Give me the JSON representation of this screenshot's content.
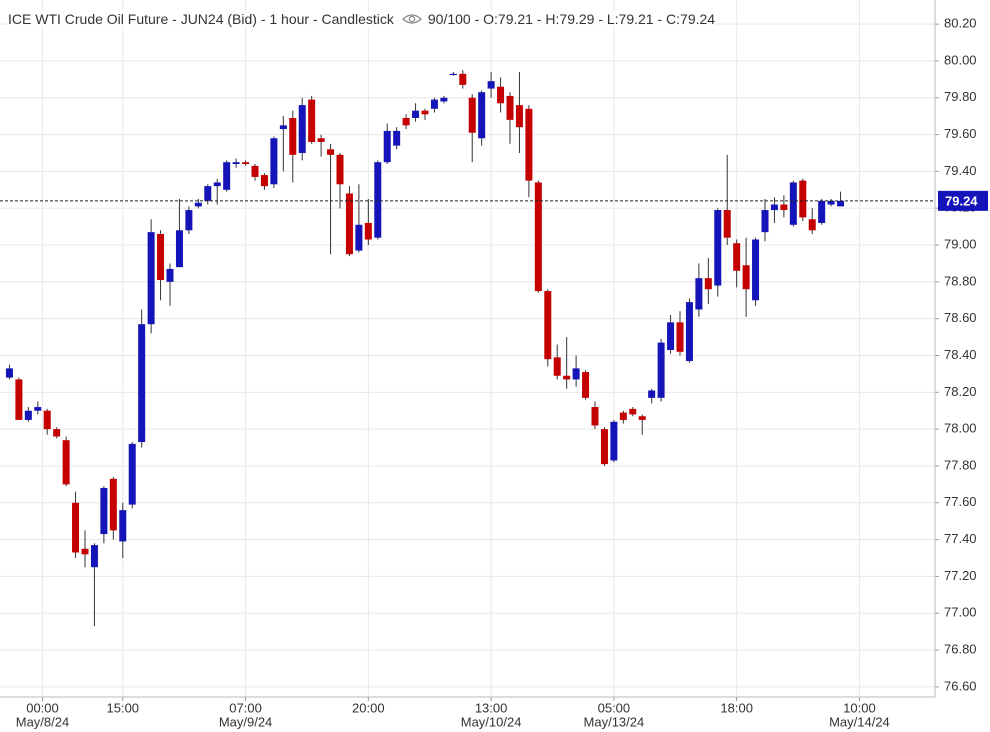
{
  "chart_data": {
    "type": "candlestick",
    "title": "ICE WTI Crude Oil Future - JUN24 (Bid) - 1 hour - Candlestick",
    "info": "90/100 - O:79.21 - H:79.29 - L:79.21 - C:79.24",
    "up_color": "#1414b8",
    "down_color": "#c40000",
    "open": [
      78.28,
      78.27,
      78.05,
      78.1,
      78.1,
      78.0,
      77.94,
      77.6,
      77.35,
      77.25,
      77.43,
      77.73,
      77.39,
      77.59,
      77.93,
      78.57,
      79.06,
      78.8,
      78.88,
      79.08,
      79.21,
      79.24,
      79.32,
      79.3,
      79.44,
      79.45,
      79.43,
      79.38,
      79.33,
      79.63,
      79.69,
      79.5,
      79.79,
      79.58,
      79.52,
      79.49,
      79.28,
      78.97,
      79.12,
      79.04,
      79.45,
      79.54,
      79.69,
      79.69,
      79.73,
      79.74,
      79.78,
      79.93,
      79.93,
      79.8,
      79.58,
      79.85,
      79.86,
      79.81,
      79.76,
      79.74,
      79.34,
      78.75,
      78.39,
      78.29,
      78.27,
      78.31,
      78.12,
      78.0,
      77.83,
      78.09,
      78.11,
      78.07,
      78.17,
      78.17,
      78.43,
      78.58,
      78.37,
      78.65,
      78.82,
      78.78,
      79.19,
      79.01,
      78.89,
      78.7,
      79.07,
      79.19,
      79.22,
      79.11,
      79.35,
      79.14,
      79.12,
      79.22,
      79.21
    ],
    "high": [
      78.35,
      78.28,
      78.12,
      78.15,
      78.11,
      78.01,
      77.96,
      77.66,
      77.45,
      77.38,
      77.69,
      77.74,
      77.6,
      77.93,
      78.65,
      79.14,
      79.08,
      78.9,
      79.25,
      79.21,
      79.25,
      79.33,
      79.36,
      79.46,
      79.47,
      79.46,
      79.44,
      79.39,
      79.59,
      79.7,
      79.73,
      79.8,
      79.81,
      79.6,
      79.55,
      79.5,
      79.32,
      79.33,
      79.25,
      79.46,
      79.66,
      79.64,
      79.71,
      79.77,
      79.74,
      79.8,
      79.81,
      79.94,
      79.95,
      79.82,
      79.84,
      79.94,
      79.91,
      79.83,
      79.94,
      79.76,
      79.35,
      78.76,
      78.46,
      78.5,
      78.4,
      78.32,
      78.15,
      78.01,
      78.05,
      78.1,
      78.12,
      78.08,
      78.22,
      78.49,
      78.62,
      78.64,
      78.71,
      78.9,
      78.93,
      79.2,
      79.49,
      79.03,
      79.04,
      79.04,
      79.25,
      79.26,
      79.27,
      79.35,
      79.36,
      79.2,
      79.25,
      79.25,
      79.29
    ],
    "low": [
      78.27,
      78.05,
      78.04,
      78.08,
      77.97,
      77.95,
      77.69,
      77.3,
      77.25,
      76.93,
      77.38,
      77.4,
      77.3,
      77.57,
      77.9,
      78.52,
      78.7,
      78.67,
      78.88,
      79.06,
      79.2,
      79.22,
      79.22,
      79.29,
      79.42,
      79.43,
      79.35,
      79.3,
      79.31,
      79.4,
      79.34,
      79.46,
      79.55,
      79.48,
      78.95,
      79.2,
      78.94,
      78.96,
      79.0,
      79.03,
      79.44,
      79.52,
      79.63,
      79.67,
      79.68,
      79.72,
      79.77,
      79.92,
      79.85,
      79.45,
      79.54,
      79.8,
      79.72,
      79.55,
      79.5,
      79.26,
      78.74,
      78.34,
      78.27,
      78.22,
      78.23,
      78.16,
      78.0,
      77.8,
      77.82,
      78.03,
      78.07,
      77.97,
      78.14,
      78.15,
      78.41,
      78.4,
      78.36,
      78.61,
      78.68,
      78.72,
      79.0,
      78.77,
      78.61,
      78.67,
      79.02,
      79.12,
      79.15,
      79.1,
      79.13,
      79.06,
      79.11,
      79.21,
      79.21
    ],
    "close": [
      78.33,
      78.05,
      78.1,
      78.12,
      78.0,
      77.96,
      77.7,
      77.33,
      77.32,
      77.37,
      77.68,
      77.45,
      77.56,
      77.92,
      78.57,
      79.07,
      78.81,
      78.87,
      79.08,
      79.19,
      79.23,
      79.32,
      79.34,
      79.45,
      79.45,
      79.44,
      79.37,
      79.32,
      79.58,
      79.65,
      79.49,
      79.76,
      79.56,
      79.56,
      79.49,
      79.33,
      78.95,
      79.11,
      79.03,
      79.45,
      79.62,
      79.62,
      79.65,
      79.73,
      79.71,
      79.79,
      79.8,
      79.93,
      79.87,
      79.61,
      79.83,
      79.89,
      79.77,
      79.68,
      79.64,
      79.35,
      78.75,
      78.38,
      78.29,
      78.27,
      78.33,
      78.17,
      78.02,
      77.81,
      78.04,
      78.05,
      78.08,
      78.05,
      78.21,
      78.47,
      78.58,
      78.42,
      78.69,
      78.82,
      78.76,
      79.19,
      79.04,
      78.86,
      78.76,
      79.03,
      79.19,
      79.22,
      79.19,
      79.34,
      79.15,
      79.08,
      79.24,
      79.24,
      79.24
    ],
    "last_price": 79.24,
    "xlim": [
      -1,
      98
    ],
    "xticks": [
      {
        "value": 3.5,
        "label": "00:00",
        "date": "May/8/24"
      },
      {
        "value": 12,
        "label": "15:00"
      },
      {
        "value": 25,
        "label": "07:00",
        "date": "May/9/24"
      },
      {
        "value": 38,
        "label": "20:00"
      },
      {
        "value": 51,
        "label": "13:00",
        "date": "May/10/24"
      },
      {
        "value": 64,
        "label": "05:00",
        "date": "May/13/24"
      },
      {
        "value": 77,
        "label": "18:00"
      },
      {
        "value": 90,
        "label": "10:00",
        "date": "May/14/24"
      }
    ],
    "ylim": [
      76.545,
      80.331
    ],
    "yticks": [
      {
        "value": 76.6,
        "label": "76.60"
      },
      {
        "value": 76.8,
        "label": "76.80"
      },
      {
        "value": 77.0,
        "label": "77.00"
      },
      {
        "value": 77.2,
        "label": "77.20"
      },
      {
        "value": 77.4,
        "label": "77.40"
      },
      {
        "value": 77.6,
        "label": "77.60"
      },
      {
        "value": 77.8,
        "label": "77.80"
      },
      {
        "value": 78.0,
        "label": "78.00"
      },
      {
        "value": 78.2,
        "label": "78.20"
      },
      {
        "value": 78.4,
        "label": "78.40"
      },
      {
        "value": 78.6,
        "label": "78.60"
      },
      {
        "value": 78.8,
        "label": "78.80"
      },
      {
        "value": 79.0,
        "label": "79.00"
      },
      {
        "value": 79.2,
        "label": "79.20"
      },
      {
        "value": 79.4,
        "label": "79.40"
      },
      {
        "value": 79.6,
        "label": "79.60"
      },
      {
        "value": 79.8,
        "label": "79.80"
      },
      {
        "value": 80.0,
        "label": "80.00"
      },
      {
        "value": 80.2,
        "label": "80.20"
      }
    ],
    "grid": true
  }
}
